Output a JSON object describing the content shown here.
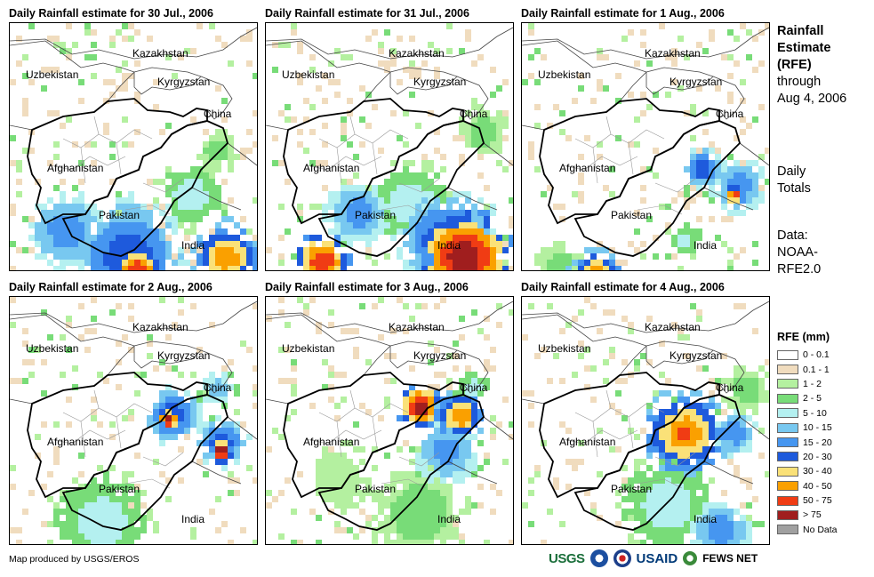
{
  "panels": [
    {
      "title": "Daily Rainfall estimate for 30 Jul., 2006",
      "day": 0
    },
    {
      "title": "Daily Rainfall estimate for 31 Jul., 2006",
      "day": 1
    },
    {
      "title": "Daily Rainfall estimate for 1 Aug., 2006",
      "day": 2
    },
    {
      "title": "Daily Rainfall estimate for 2 Aug., 2006",
      "day": 3
    },
    {
      "title": "Daily Rainfall estimate for 3 Aug., 2006",
      "day": 4
    },
    {
      "title": "Daily Rainfall estimate for 4 Aug., 2006",
      "day": 5
    }
  ],
  "country_labels": {
    "kazakhstan": "Kazakhstan",
    "uzbekistan": "Uzbekistan",
    "kyrgyzstan": "Kyrgyzstan",
    "china": "China",
    "afghanistan": "Afghanistan",
    "pakistan": "Pakistan",
    "india": "India"
  },
  "side": {
    "title_line1": "Rainfall",
    "title_line2": "Estimate",
    "title_line3": "(RFE)",
    "through": "through",
    "date": "Aug 4, 2006",
    "daily1": "Daily",
    "daily2": "Totals",
    "data1": "Data:",
    "data2": "NOAA-",
    "data3": "RFE2.0"
  },
  "legend": {
    "title": "RFE (mm)",
    "items": [
      {
        "label": "0 - 0.1",
        "color": "#ffffff"
      },
      {
        "label": "0.1 - 1",
        "color": "#f0dcbe"
      },
      {
        "label": "1 - 2",
        "color": "#b4f0a0"
      },
      {
        "label": "2 - 5",
        "color": "#78dc78"
      },
      {
        "label": "5 - 10",
        "color": "#b4f0f0"
      },
      {
        "label": "10 - 15",
        "color": "#78c8f0"
      },
      {
        "label": "15 - 20",
        "color": "#4696f0"
      },
      {
        "label": "20 - 30",
        "color": "#1e5adc"
      },
      {
        "label": "30 - 40",
        "color": "#fae178"
      },
      {
        "label": "40 - 50",
        "color": "#faa000"
      },
      {
        "label": "50 - 75",
        "color": "#f03c14"
      },
      {
        "label": "> 75",
        "color": "#a01e1e"
      },
      {
        "label": "No Data",
        "color": "#a0a0a0"
      }
    ]
  },
  "footer": "Map produced by USGS/EROS",
  "logos": {
    "usgs": "USGS",
    "usaid": "USAID",
    "fews": "FEWS NET"
  }
}
